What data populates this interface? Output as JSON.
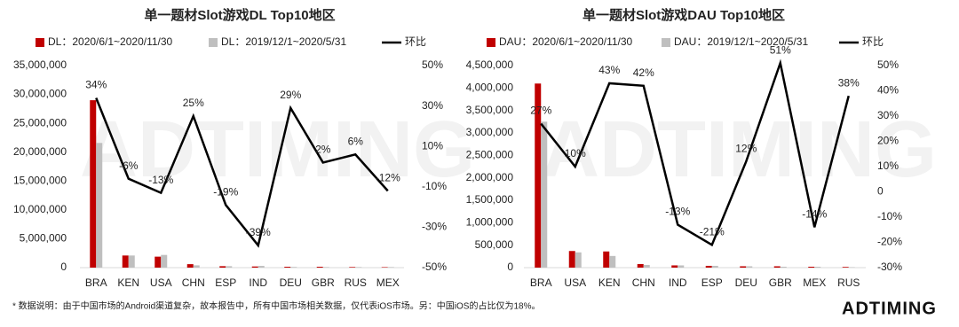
{
  "chart_data": [
    {
      "type": "bar_line",
      "title": "单一题材Slot游戏DL Top10地区",
      "categories": [
        "BRA",
        "KEN",
        "USA",
        "CHN",
        "ESP",
        "IND",
        "DEU",
        "GBR",
        "RUS",
        "MEX"
      ],
      "series": [
        {
          "name": "DL：2020/6/1~2020/11/30",
          "color": "#c00000",
          "type": "bar",
          "values": [
            29000000,
            2100000,
            1900000,
            600000,
            250000,
            200000,
            150000,
            150000,
            100000,
            80000
          ]
        },
        {
          "name": "DL：2019/12/1~2020/5/31",
          "color": "#bfbfbf",
          "type": "bar",
          "values": [
            21600000,
            2100000,
            2200000,
            400000,
            250000,
            300000,
            120000,
            100000,
            100000,
            100000
          ]
        },
        {
          "name": "环比",
          "color": "#000000",
          "type": "line",
          "axis": "y2",
          "values": [
            34,
            -6,
            -13,
            25,
            -19,
            -39,
            29,
            2,
            6,
            -12
          ],
          "value_labels": [
            "34%",
            "-6%",
            "-13%",
            "25%",
            "-19%",
            "-39%",
            "29%",
            "2%",
            "6%",
            "-12%"
          ]
        }
      ],
      "ylim": [
        0,
        35000000
      ],
      "yticks": [
        0,
        {
          "value": 5000000,
          "label": "5,000,000"
        },
        {
          "value": 10000000,
          "label": "10,000,000"
        },
        {
          "value": 15000000,
          "label": "15,000,000"
        },
        {
          "value": 20000000,
          "label": "20,000,000"
        },
        {
          "value": 25000000,
          "label": "25,000,000"
        },
        {
          "value": 30000000,
          "label": "30,000,000"
        },
        {
          "value": 35000000,
          "label": "35,000,000"
        }
      ],
      "y2lim": [
        -50,
        50
      ],
      "y2ticks": [
        {
          "value": -50,
          "label": "-50%"
        },
        {
          "value": -30,
          "label": "-30%"
        },
        {
          "value": -10,
          "label": "-10%"
        },
        {
          "value": 10,
          "label": "10%"
        },
        {
          "value": 30,
          "label": "30%"
        },
        {
          "value": 50,
          "label": "50%"
        }
      ]
    },
    {
      "type": "bar_line",
      "title": "单一题材Slot游戏DAU Top10地区",
      "categories": [
        "BRA",
        "USA",
        "KEN",
        "CHN",
        "IND",
        "ESP",
        "DEU",
        "GBR",
        "MEX",
        "RUS"
      ],
      "series": [
        {
          "name": "DAU：2020/6/1~2020/11/30",
          "color": "#c00000",
          "type": "bar",
          "values": [
            4100000,
            370000,
            360000,
            80000,
            50000,
            40000,
            30000,
            30000,
            20000,
            15000
          ]
        },
        {
          "name": "DAU：2019/12/1~2020/5/31",
          "color": "#bfbfbf",
          "type": "bar",
          "values": [
            3250000,
            340000,
            260000,
            60000,
            50000,
            40000,
            30000,
            20000,
            20000,
            10000
          ]
        },
        {
          "name": "环比",
          "color": "#000000",
          "type": "line",
          "axis": "y2",
          "values": [
            27,
            10,
            43,
            42,
            -13,
            -21,
            12,
            51,
            -14,
            38
          ],
          "value_labels": [
            "27%",
            "10%",
            "43%",
            "42%",
            "-13%",
            "-21%",
            "12%",
            "51%",
            "-14%",
            "38%"
          ]
        }
      ],
      "ylim": [
        0,
        4500000
      ],
      "yticks": [
        0,
        {
          "value": 500000,
          "label": "500,000"
        },
        {
          "value": 1000000,
          "label": "1,000,000"
        },
        {
          "value": 1500000,
          "label": "1,500,000"
        },
        {
          "value": 2000000,
          "label": "2,000,000"
        },
        {
          "value": 2500000,
          "label": "2,500,000"
        },
        {
          "value": 3000000,
          "label": "3,000,000"
        },
        {
          "value": 3500000,
          "label": "3,500,000"
        },
        {
          "value": 4000000,
          "label": "4,000,000"
        },
        {
          "value": 4500000,
          "label": "4,500,000"
        }
      ],
      "y2lim": [
        -30,
        50
      ],
      "y2ticks": [
        {
          "value": -30,
          "label": "-30%"
        },
        {
          "value": -20,
          "label": "-20%"
        },
        {
          "value": -10,
          "label": "-10%"
        },
        0,
        {
          "value": 10,
          "label": "10%"
        },
        {
          "value": 20,
          "label": "20%"
        },
        {
          "value": 30,
          "label": "30%"
        },
        {
          "value": 40,
          "label": "40%"
        },
        {
          "value": 50,
          "label": "50%"
        }
      ]
    }
  ],
  "watermark": "ADTIMING",
  "footnote": "* 数据说明：由于中国市场的Android渠道复杂，故本报告中，所有中国市场相关数据，仅代表iOS市场。另：中国iOS的占比仅为18%。",
  "logo": "ADTIMING"
}
